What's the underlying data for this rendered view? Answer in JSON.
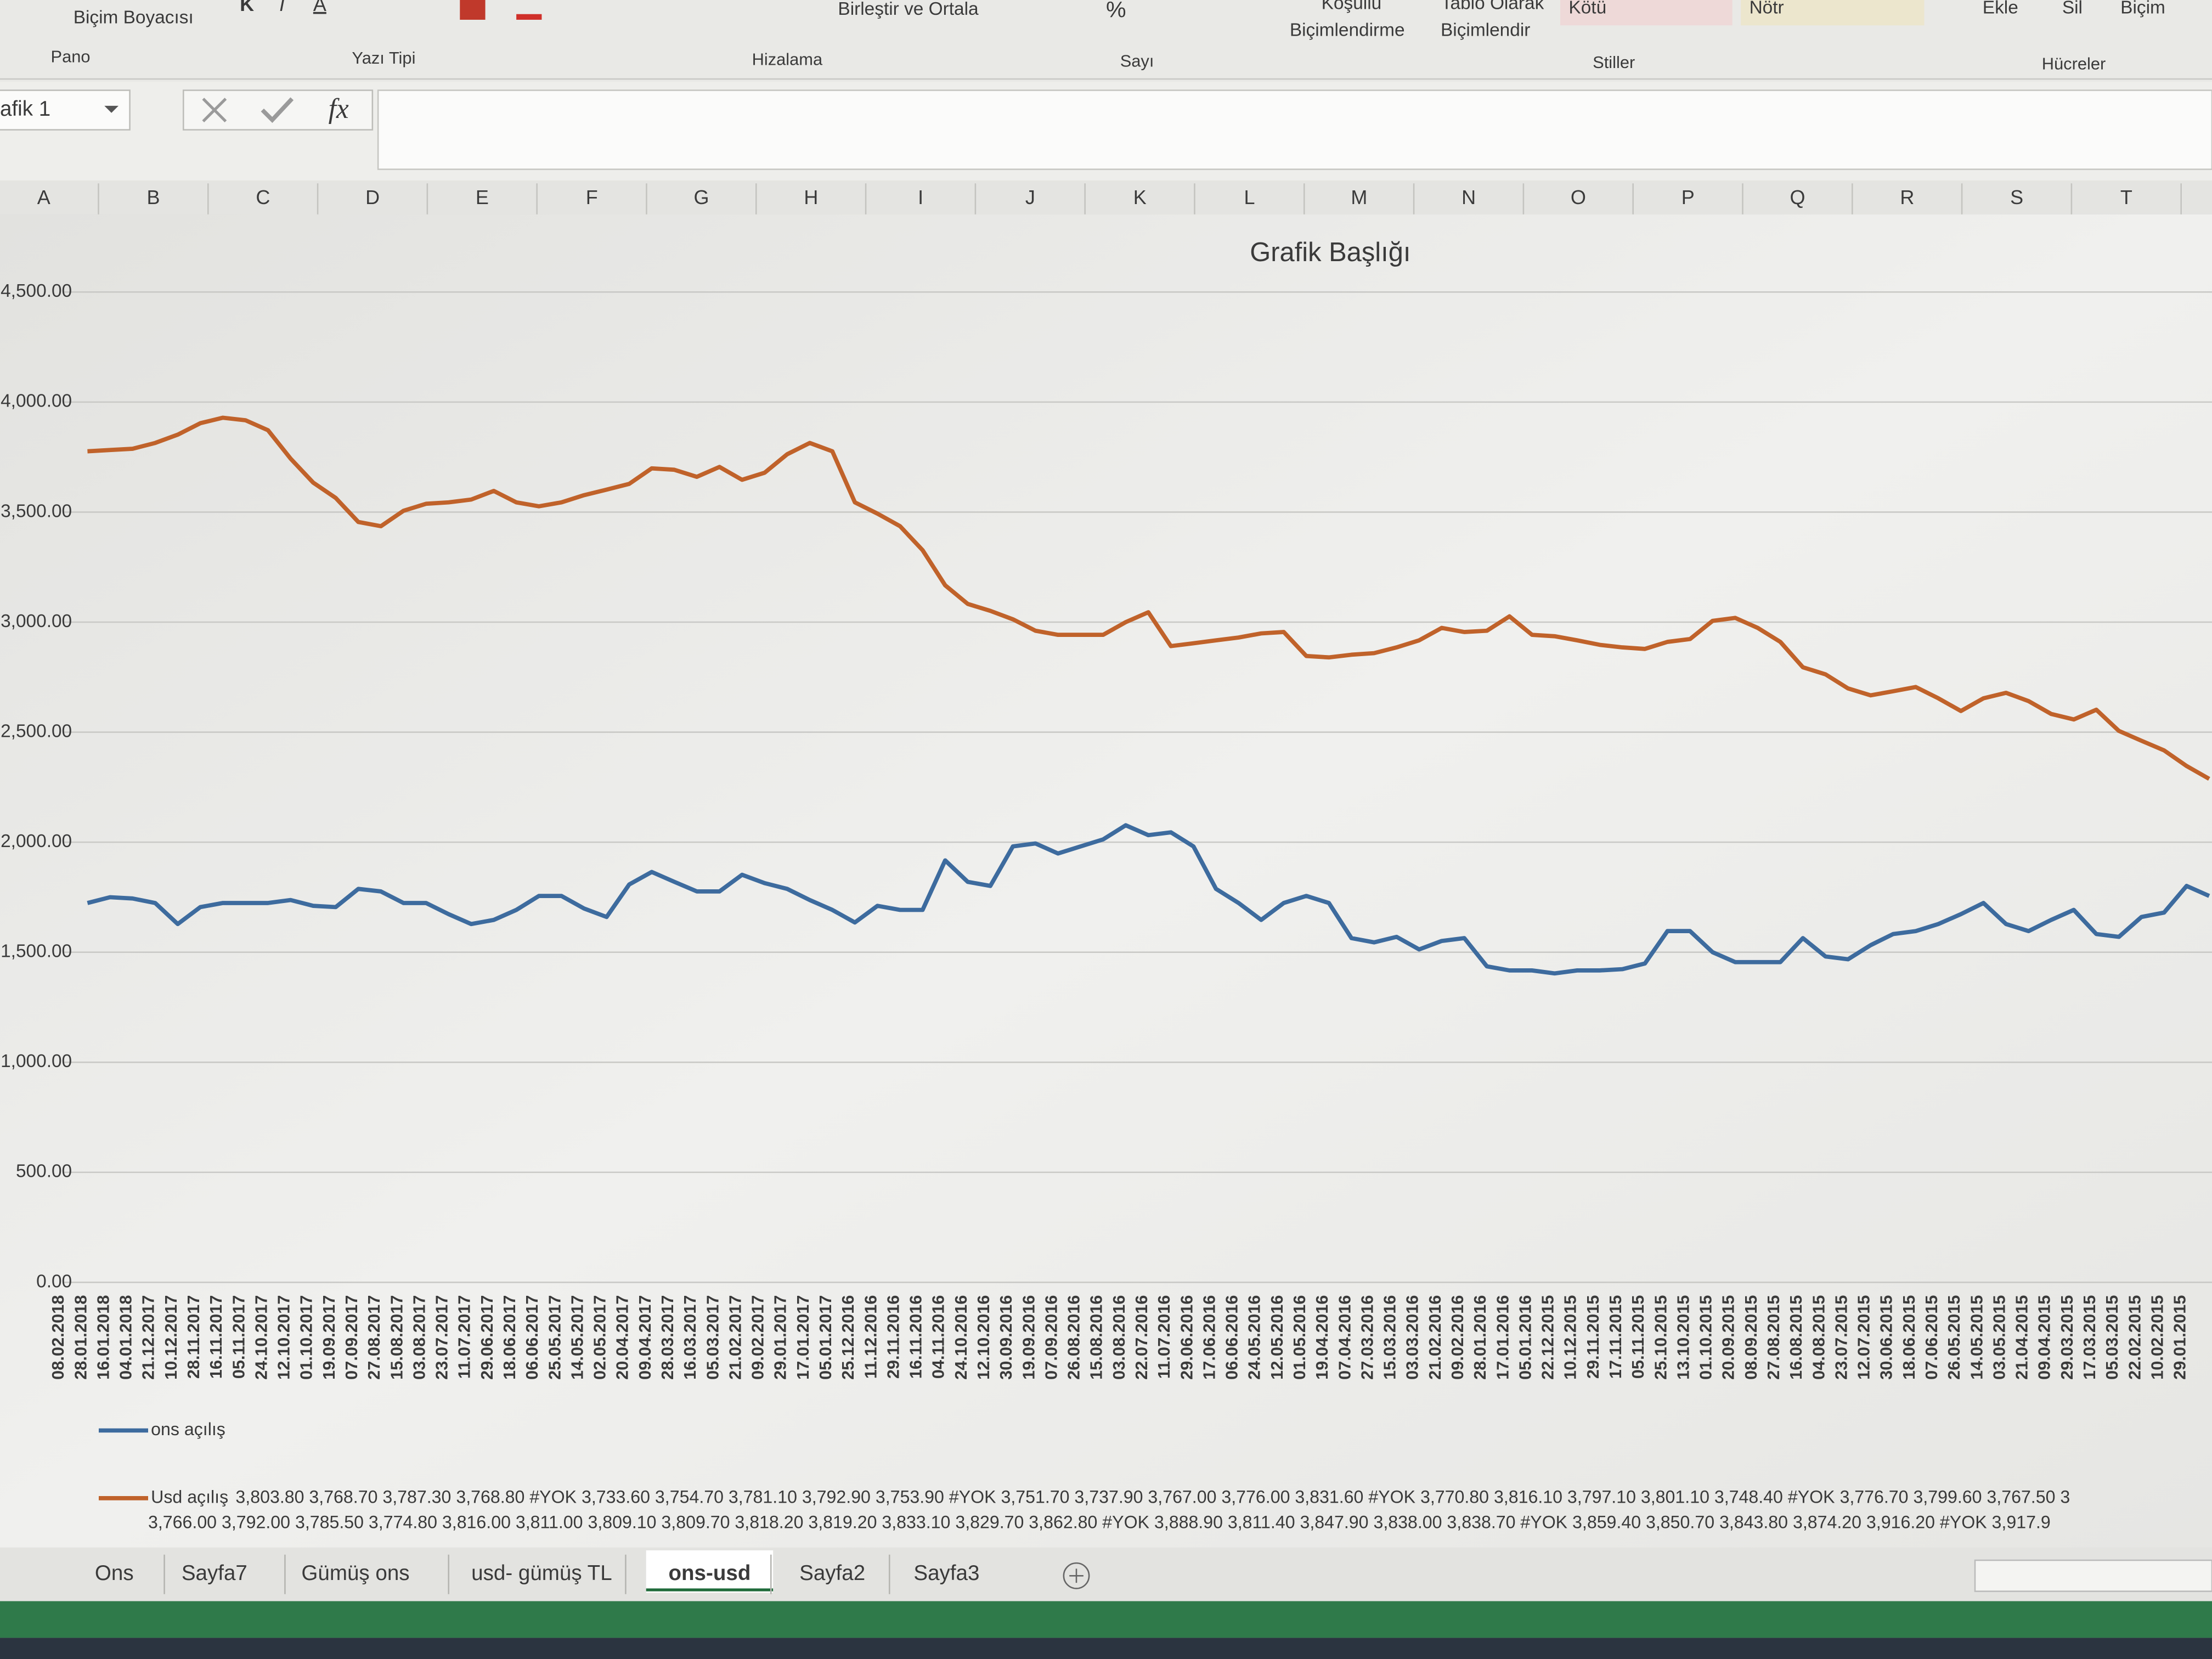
{
  "ribbon": {
    "font_buttons": [
      "K",
      "I",
      "A"
    ],
    "buttons": [
      "Biçim Boyacısı",
      "Birleştir ve Ortala",
      "Koşullu",
      "Biçimlendirme",
      "Tablo Olarak",
      "Biçimlendir",
      "Kötü",
      "Nötr",
      "Ekle",
      "Sil",
      "Biçim",
      "%"
    ],
    "groups": [
      "Pano",
      "Yazı Tipi",
      "Hizalama",
      "Sayı",
      "Stiller",
      "Hücreler"
    ]
  },
  "name_box": "afik 1",
  "formula_fx": "fx",
  "columns": [
    "A",
    "B",
    "C",
    "D",
    "E",
    "F",
    "G",
    "H",
    "I",
    "J",
    "K",
    "L",
    "M",
    "N",
    "O",
    "P",
    "Q",
    "R",
    "S",
    "T"
  ],
  "chart_data": {
    "type": "line",
    "title": "Grafik Başlığı",
    "categories": [
      "08.02.2018",
      "28.01.2018",
      "16.01.2018",
      "04.01.2018",
      "21.12.2017",
      "10.12.2017",
      "28.11.2017",
      "16.11.2017",
      "05.11.2017",
      "24.10.2017",
      "12.10.2017",
      "01.10.2017",
      "19.09.2017",
      "07.09.2017",
      "27.08.2017",
      "15.08.2017",
      "03.08.2017",
      "23.07.2017",
      "11.07.2017",
      "29.06.2017",
      "18.06.2017",
      "06.06.2017",
      "25.05.2017",
      "14.05.2017",
      "02.05.2017",
      "20.04.2017",
      "09.04.2017",
      "28.03.2017",
      "16.03.2017",
      "05.03.2017",
      "21.02.2017",
      "09.02.2017",
      "29.01.2017",
      "17.01.2017",
      "05.01.2017",
      "25.12.2016",
      "11.12.2016",
      "29.11.2016",
      "16.11.2016",
      "04.11.2016",
      "24.10.2016",
      "12.10.2016",
      "30.09.2016",
      "19.09.2016",
      "07.09.2016",
      "26.08.2016",
      "15.08.2016",
      "03.08.2016",
      "22.07.2016",
      "11.07.2016",
      "29.06.2016",
      "17.06.2016",
      "06.06.2016",
      "24.05.2016",
      "12.05.2016",
      "01.05.2016",
      "19.04.2016",
      "07.04.2016",
      "27.03.2016",
      "15.03.2016",
      "03.03.2016",
      "21.02.2016",
      "09.02.2016",
      "28.01.2016",
      "17.01.2016",
      "05.01.2016",
      "22.12.2015",
      "10.12.2015",
      "29.11.2015",
      "17.11.2015",
      "05.11.2015",
      "25.10.2015",
      "13.10.2015",
      "01.10.2015",
      "20.09.2015",
      "08.09.2015",
      "27.08.2015",
      "16.08.2015",
      "04.08.2015",
      "23.07.2015",
      "12.07.2015",
      "30.06.2015",
      "18.06.2015",
      "07.06.2015",
      "26.05.2015",
      "14.05.2015",
      "03.05.2015",
      "21.04.2015",
      "09.04.2015",
      "29.03.2015",
      "17.03.2015",
      "05.03.2015",
      "22.02.2015",
      "10.02.2015",
      "29.01.2015"
    ],
    "series": [
      {
        "name": "ons açılış",
        "color": "#3d6b9e",
        "values": [
          1724,
          1750,
          1744,
          1724,
          1628,
          1705,
          1724,
          1724,
          1724,
          1737,
          1711,
          1705,
          1788,
          1776,
          1724,
          1724,
          1673,
          1628,
          1647,
          1692,
          1756,
          1756,
          1699,
          1660,
          1808,
          1865,
          1820,
          1776,
          1776,
          1852,
          1814,
          1788,
          1737,
          1692,
          1635,
          1711,
          1692,
          1692,
          1917,
          1820,
          1801,
          1981,
          1994,
          1949,
          1981,
          2013,
          2077,
          2032,
          2045,
          1981,
          1788,
          1724,
          1647,
          1724,
          1756,
          1724,
          1564,
          1545,
          1570,
          1513,
          1551,
          1564,
          1436,
          1417,
          1417,
          1404,
          1417,
          1417,
          1423,
          1449,
          1596,
          1596,
          1500,
          1455,
          1455,
          1455,
          1564,
          1481,
          1468,
          1532,
          1583,
          1596,
          1628,
          1673,
          1724,
          1628,
          1596,
          1647,
          1692,
          1583,
          1570,
          1660,
          1680,
          1801,
          1756
        ]
      },
      {
        "name": "Usd açılış",
        "color": "#c0622a",
        "values": [
          3776,
          3782,
          3788,
          3814,
          3852,
          3904,
          3929,
          3917,
          3872,
          3743,
          3634,
          3564,
          3455,
          3436,
          3506,
          3538,
          3544,
          3557,
          3596,
          3544,
          3526,
          3544,
          3577,
          3602,
          3628,
          3699,
          3692,
          3660,
          3705,
          3647,
          3679,
          3763,
          3814,
          3776,
          3544,
          3493,
          3436,
          3327,
          3167,
          3083,
          3051,
          3013,
          2961,
          2942,
          2942,
          2942,
          3000,
          3045,
          2891,
          2904,
          2917,
          2930,
          2949,
          2955,
          2846,
          2840,
          2852,
          2859,
          2885,
          2917,
          2974,
          2955,
          2961,
          3026,
          2942,
          2936,
          2917,
          2897,
          2885,
          2878,
          2910,
          2923,
          3006,
          3019,
          2974,
          2910,
          2795,
          2763,
          2699,
          2667,
          2686,
          2705,
          2654,
          2596,
          2654,
          2679,
          2641,
          2583,
          2558,
          2602,
          2506,
          2461,
          2417,
          2346,
          2288
        ]
      }
    ],
    "ylim": [
      0,
      4500
    ],
    "yticks": [
      {
        "value": 0,
        "label": "0.00"
      },
      {
        "value": 500,
        "label": "500.00"
      },
      {
        "value": 1000,
        "label": "1,000.00"
      },
      {
        "value": 1500,
        "label": "1,500.00"
      },
      {
        "value": 2000,
        "label": "2,000.00"
      },
      {
        "value": 2500,
        "label": "2,500.00"
      },
      {
        "value": 3000,
        "label": "3,000.00"
      },
      {
        "value": 3500,
        "label": "3,500.00"
      },
      {
        "value": 4000,
        "label": "4,000.00"
      },
      {
        "value": 4500,
        "label": "4,500.00"
      }
    ],
    "grid": true,
    "data_table_rows": [
      "3,803.80 3,768.70 3,787.30 3,768.80 #YOK 3,733.60 3,754.70 3,781.10 3,792.90 3,753.90 #YOK 3,751.70 3,737.90 3,767.00 3,776.00 3,831.60 #YOK 3,770.80 3,816.10 3,797.10 3,801.10 3,748.40 #YOK 3,776.70 3,799.60 3,767.50 3",
      "3,766.00 3,792.00 3,785.50 3,774.80 3,816.00 3,811.00 3,809.10 3,809.70 3,818.20 3,819.20 3,833.10 3,829.70 3,862.80 #YOK 3,888.90 3,811.40 3,847.90 3,838.00 3,838.70 #YOK 3,859.40 3,850.70 3,843.80 3,874.20 3,916.20 #YOK 3,917.9"
    ]
  },
  "sheet_tabs": [
    "Ons",
    "Sayfa7",
    "Gümüş ons",
    "usd- gümüş TL",
    "ons-usd",
    "Sayfa2",
    "Sayfa3"
  ],
  "active_tab": 4
}
